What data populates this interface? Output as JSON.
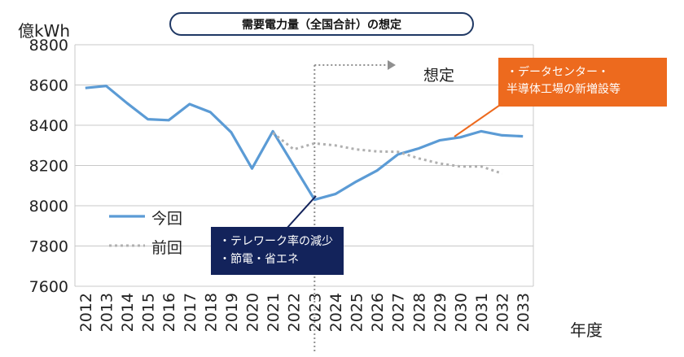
{
  "chart_data": {
    "type": "line",
    "title": "需要電力量（全国合計）の想定",
    "ylabel": "億kWh",
    "xlabel": "年度",
    "ylim": [
      7600,
      8800
    ],
    "yticks": [
      7600,
      7800,
      8000,
      8200,
      8400,
      8600,
      8800
    ],
    "categories": [
      "2012",
      "2013",
      "2014",
      "2015",
      "2016",
      "2017",
      "2018",
      "2019",
      "2020",
      "2021",
      "2022",
      "2023",
      "2024",
      "2025",
      "2026",
      "2027",
      "2028",
      "2029",
      "2030",
      "2031",
      "2032",
      "2033"
    ],
    "series": [
      {
        "name": "今回",
        "color": "#5b9bd5",
        "style": "solid",
        "values": [
          8585,
          8595,
          8510,
          8430,
          8425,
          8505,
          8465,
          8365,
          8185,
          8370,
          8200,
          8030,
          8058,
          8120,
          8175,
          8255,
          8285,
          8325,
          8340,
          8370,
          8350,
          8345
        ]
      },
      {
        "name": "前回",
        "color": "#b0b0b0",
        "style": "dotted",
        "values": [
          null,
          null,
          null,
          null,
          null,
          null,
          null,
          null,
          null,
          8362,
          8280,
          8310,
          8300,
          8280,
          8270,
          8268,
          8235,
          8210,
          8195,
          8195,
          8160,
          null
        ]
      }
    ],
    "grid": true,
    "legend_position": "left"
  },
  "annotations": {
    "forecast_label": "想定",
    "orange_callout": [
      "・データセンター・",
      "半導体工場の新増設等"
    ],
    "navy_callout": [
      "・テレワーク率の減少",
      "・節電・省エネ"
    ]
  },
  "colors": {
    "accent_orange": "#ed6a1e",
    "accent_navy": "#13235b",
    "series_current": "#5b9bd5",
    "series_previous": "#b0b0b0"
  }
}
